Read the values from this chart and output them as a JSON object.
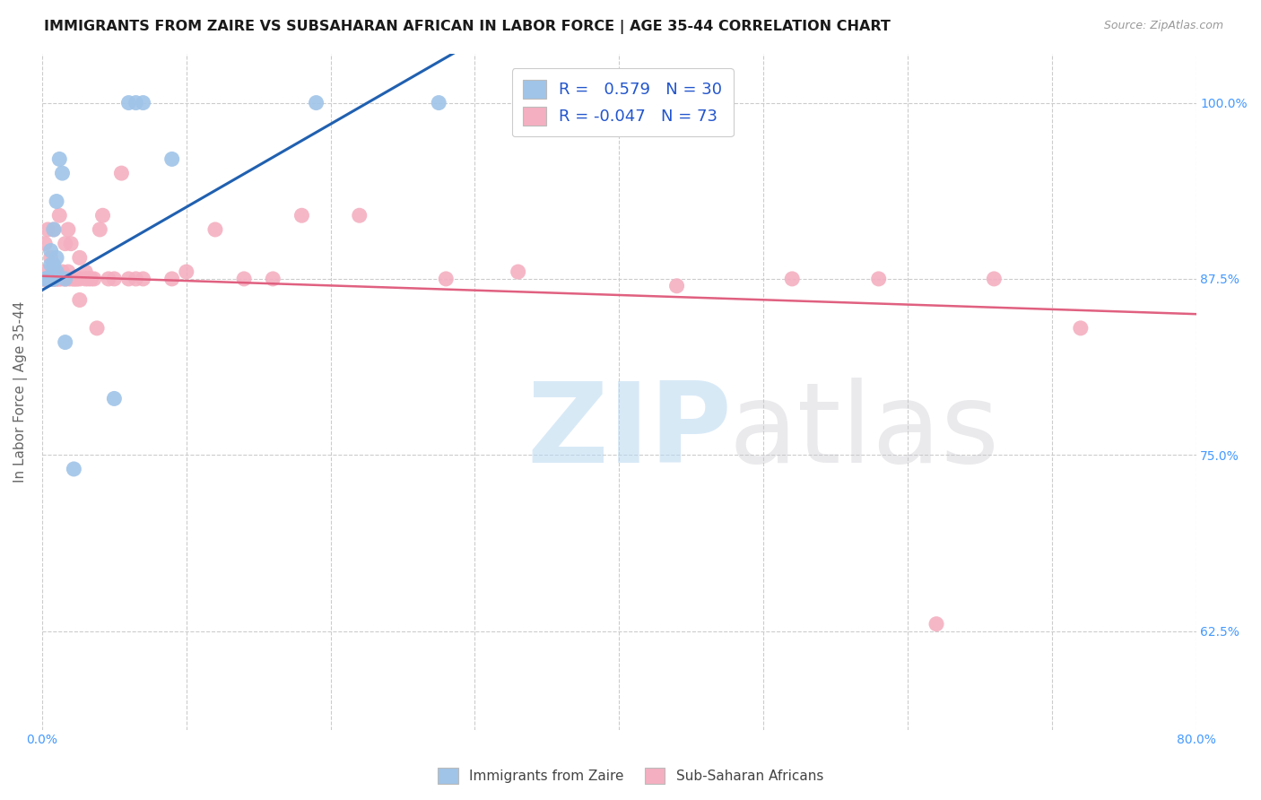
{
  "title": "IMMIGRANTS FROM ZAIRE VS SUBSAHARAN AFRICAN IN LABOR FORCE | AGE 35-44 CORRELATION CHART",
  "source": "Source: ZipAtlas.com",
  "ylabel": "In Labor Force | Age 35-44",
  "xlim": [
    0.0,
    0.8
  ],
  "ylim": [
    0.555,
    1.035
  ],
  "xticks": [
    0.0,
    0.1,
    0.2,
    0.3,
    0.4,
    0.5,
    0.6,
    0.7,
    0.8
  ],
  "xticklabels": [
    "0.0%",
    "",
    "",
    "",
    "",
    "",
    "",
    "",
    "80.0%"
  ],
  "yticks": [
    0.625,
    0.75,
    0.875,
    1.0
  ],
  "yticklabels": [
    "62.5%",
    "75.0%",
    "87.5%",
    "100.0%"
  ],
  "background_color": "#ffffff",
  "grid_color": "#cccccc",
  "zaire_color": "#a0c4e8",
  "subsaharan_color": "#f4afc0",
  "zaire_line_color": "#2060b0",
  "subsaharan_line_color": "#e06080",
  "zaire_r": 0.579,
  "zaire_n": 30,
  "subsaharan_r": -0.047,
  "subsaharan_n": 73,
  "zaire_line_x0": 0.0,
  "zaire_line_y0": 0.867,
  "zaire_line_x1": 0.285,
  "zaire_line_y1": 1.035,
  "subsaharan_line_x0": 0.0,
  "subsaharan_line_y0": 0.877,
  "subsaharan_line_x1": 0.8,
  "subsaharan_line_y1": 0.85,
  "zaire_points_x": [
    0.003,
    0.003,
    0.003,
    0.003,
    0.006,
    0.006,
    0.006,
    0.006,
    0.006,
    0.006,
    0.008,
    0.008,
    0.008,
    0.008,
    0.008,
    0.01,
    0.01,
    0.01,
    0.012,
    0.014,
    0.016,
    0.016,
    0.022,
    0.05,
    0.06,
    0.065,
    0.07,
    0.09,
    0.19,
    0.275
  ],
  "zaire_points_y": [
    0.875,
    0.875,
    0.875,
    0.875,
    0.875,
    0.875,
    0.875,
    0.875,
    0.885,
    0.895,
    0.875,
    0.875,
    0.875,
    0.885,
    0.91,
    0.88,
    0.89,
    0.93,
    0.96,
    0.95,
    0.875,
    0.83,
    0.74,
    0.79,
    1.0,
    1.0,
    1.0,
    0.96,
    1.0,
    1.0
  ],
  "subsaharan_points_x": [
    0.002,
    0.002,
    0.002,
    0.002,
    0.002,
    0.002,
    0.002,
    0.002,
    0.004,
    0.004,
    0.004,
    0.006,
    0.006,
    0.006,
    0.006,
    0.008,
    0.008,
    0.008,
    0.008,
    0.008,
    0.01,
    0.01,
    0.01,
    0.012,
    0.012,
    0.012,
    0.014,
    0.014,
    0.016,
    0.016,
    0.016,
    0.018,
    0.018,
    0.018,
    0.02,
    0.02,
    0.022,
    0.022,
    0.024,
    0.024,
    0.026,
    0.026,
    0.026,
    0.03,
    0.03,
    0.032,
    0.034,
    0.036,
    0.038,
    0.04,
    0.042,
    0.046,
    0.05,
    0.055,
    0.06,
    0.065,
    0.07,
    0.09,
    0.1,
    0.12,
    0.14,
    0.16,
    0.18,
    0.22,
    0.28,
    0.33,
    0.4,
    0.44,
    0.52,
    0.58,
    0.62,
    0.66,
    0.72
  ],
  "subsaharan_points_y": [
    0.875,
    0.875,
    0.875,
    0.875,
    0.875,
    0.875,
    0.88,
    0.9,
    0.875,
    0.875,
    0.91,
    0.875,
    0.875,
    0.875,
    0.89,
    0.875,
    0.875,
    0.875,
    0.88,
    0.91,
    0.875,
    0.875,
    0.875,
    0.875,
    0.875,
    0.92,
    0.875,
    0.88,
    0.875,
    0.875,
    0.9,
    0.875,
    0.88,
    0.91,
    0.875,
    0.9,
    0.875,
    0.875,
    0.875,
    0.875,
    0.86,
    0.89,
    0.875,
    0.875,
    0.88,
    0.875,
    0.875,
    0.875,
    0.84,
    0.91,
    0.92,
    0.875,
    0.875,
    0.95,
    0.875,
    0.875,
    0.875,
    0.875,
    0.88,
    0.91,
    0.875,
    0.875,
    0.92,
    0.92,
    0.875,
    0.88,
    1.0,
    0.87,
    0.875,
    0.875,
    0.63,
    0.875,
    0.84
  ]
}
